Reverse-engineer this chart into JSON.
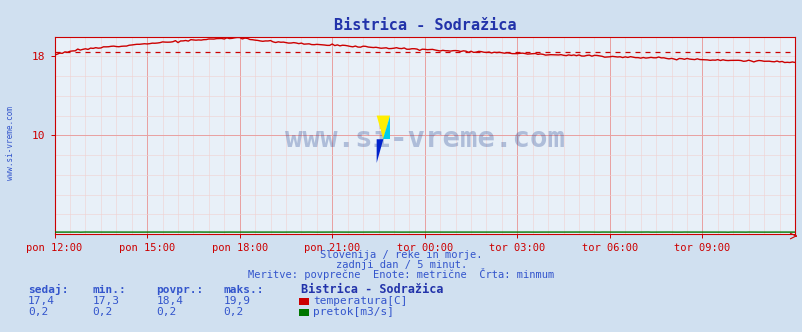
{
  "title": "Bistrica - Sodražica",
  "bg_color": "#d0e0f0",
  "plot_bg_color": "#e8f0f8",
  "grid_color": "#e8a0a0",
  "grid_minor_color": "#f0d0d0",
  "title_color": "#2233aa",
  "axis_color": "#cc0000",
  "tick_label_color": "#3355cc",
  "subtitle_lines": [
    "Slovenija / reke in morje.",
    "zadnji dan / 5 minut.",
    "Meritve: povprečne  Enote: metrične  Črta: minmum"
  ],
  "watermark": "www.si-vreme.com",
  "watermark_color": "#1a3a8a",
  "x_tick_labels": [
    "pon 12:00",
    "pon 15:00",
    "pon 18:00",
    "pon 21:00",
    "tor 00:00",
    "tor 03:00",
    "tor 06:00",
    "tor 09:00"
  ],
  "x_tick_positions": [
    0,
    36,
    72,
    108,
    144,
    180,
    216,
    252
  ],
  "n_points": 289,
  "temp_min": 17.3,
  "temp_max": 19.9,
  "temp_avg": 18.4,
  "temp_current": 17.4,
  "flow_min": 0.2,
  "flow_max": 0.2,
  "flow_avg": 0.2,
  "flow_current": 0.2,
  "ylim_min": 0,
  "ylim_max": 20,
  "y_ticks": [
    10,
    18
  ],
  "temp_line_color": "#cc0000",
  "temp_avg_line_color": "#cc0000",
  "flow_line_color": "#007700",
  "legend_title": "Bistrica - Sodražica",
  "legend_temp_label": "temperatura[C]",
  "legend_flow_label": "pretok[m3/s]",
  "table_headers": [
    "sedaj:",
    "min.:",
    "povpr.:",
    "maks.:"
  ],
  "table_temp_values": [
    "17,4",
    "17,3",
    "18,4",
    "19,9"
  ],
  "table_flow_values": [
    "0,2",
    "0,2",
    "0,2",
    "0,2"
  ],
  "table_color": "#3355cc",
  "table_header_color": "#3355cc"
}
